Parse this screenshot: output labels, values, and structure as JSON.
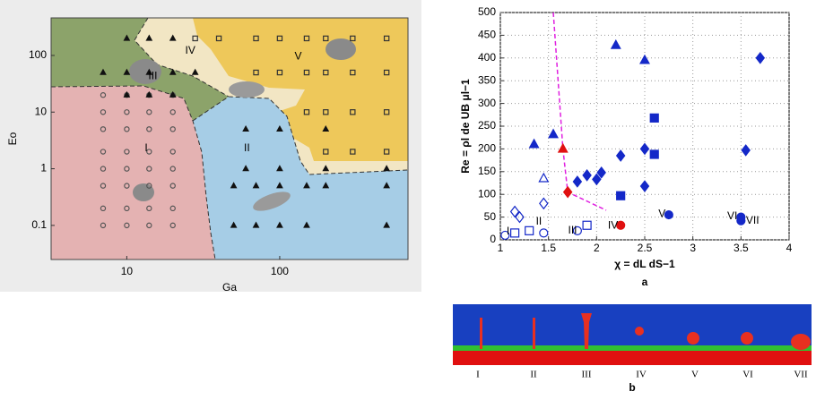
{
  "chart_data": [
    {
      "type": "scatter",
      "xlabel": "Ga",
      "ylabel": "Eo",
      "xscale": "log",
      "yscale": "log",
      "xlim": [
        3.2,
        690
      ],
      "ylim": [
        0.025,
        460
      ],
      "xticks": [
        10,
        100
      ],
      "yticks": [
        0.1,
        1,
        10,
        100
      ],
      "annotations": [
        {
          "text": "I",
          "x": 13.4,
          "y": 2.3
        },
        {
          "text": "II",
          "x": 61,
          "y": 2.3
        },
        {
          "text": "III",
          "x": 14.8,
          "y": 43
        },
        {
          "text": "IV",
          "x": 26,
          "y": 120
        },
        {
          "text": "V",
          "x": 132,
          "y": 96
        }
      ],
      "series": [
        {
          "marker": "circle",
          "filled": false,
          "color": "#555555",
          "x": [
            7,
            10,
            14,
            20,
            7,
            10,
            14,
            20,
            7,
            10,
            14,
            20,
            7,
            10,
            14,
            20,
            7,
            10,
            14,
            20,
            7,
            10,
            14,
            20,
            7,
            10,
            14,
            20,
            7,
            10,
            14,
            20
          ],
          "values": [
            0.1,
            0.1,
            0.1,
            0.1,
            0.2,
            0.2,
            0.2,
            0.2,
            0.5,
            0.5,
            0.5,
            0.5,
            1,
            1,
            1,
            1,
            2,
            2,
            2,
            2,
            5,
            5,
            5,
            5,
            10,
            10,
            10,
            10,
            20,
            20,
            20,
            20
          ]
        },
        {
          "marker": "triangle",
          "filled": true,
          "color": "#111111",
          "x": [
            50,
            70,
            100,
            150,
            500,
            50,
            70,
            100,
            150,
            200,
            500,
            60,
            100,
            200,
            500,
            60,
            100,
            200,
            10,
            14,
            20,
            7,
            10,
            14,
            20,
            28,
            10,
            14,
            20
          ],
          "values": [
            0.1,
            0.1,
            0.1,
            0.1,
            0.1,
            0.5,
            0.5,
            0.5,
            0.5,
            0.5,
            0.5,
            1,
            1,
            1,
            1,
            5,
            5,
            5,
            20,
            20,
            20,
            50,
            50,
            50,
            50,
            50,
            200,
            200,
            200
          ]
        },
        {
          "marker": "square",
          "filled": false,
          "color": "#333333",
          "x": [
            28,
            40,
            70,
            100,
            150,
            200,
            300,
            500,
            70,
            100,
            150,
            200,
            300,
            500,
            150,
            200,
            300,
            500,
            200,
            300,
            500
          ],
          "values": [
            200,
            200,
            200,
            200,
            200,
            200,
            200,
            200,
            50,
            50,
            50,
            50,
            50,
            50,
            10,
            10,
            10,
            10,
            2,
            2,
            2
          ]
        }
      ]
    },
    {
      "type": "scatter",
      "xlabel": "χ = dL dS−1",
      "ylabel": "Re = ρl de UB μl−1",
      "panel_label": "a",
      "xlim": [
        1,
        4
      ],
      "ylim": [
        0,
        500
      ],
      "xticks": [
        1,
        1.5,
        2,
        2.5,
        3,
        3.5,
        4
      ],
      "yticks": [
        0,
        50,
        100,
        150,
        200,
        250,
        300,
        350,
        400,
        450,
        500
      ],
      "grid": true,
      "annotations": [
        {
          "text": "I",
          "x": 1.08,
          "y": 18
        },
        {
          "text": "II",
          "x": 1.4,
          "y": 40
        },
        {
          "text": "III",
          "x": 1.75,
          "y": 20
        },
        {
          "text": "IV",
          "x": 2.17,
          "y": 31
        },
        {
          "text": "V",
          "x": 2.68,
          "y": 56
        },
        {
          "text": "VI",
          "x": 3.41,
          "y": 52
        },
        {
          "text": "VII",
          "x": 3.62,
          "y": 42
        }
      ],
      "series": [
        {
          "marker": "line",
          "dashed": true,
          "color": "#e020e0",
          "x": [
            1.55,
            1.6,
            1.65,
            1.7,
            1.95,
            2.1
          ],
          "values": [
            500,
            350,
            200,
            105,
            80,
            65
          ]
        },
        {
          "marker": "triangle",
          "filled": true,
          "color": "#1428c8",
          "x": [
            1.35,
            1.55,
            2.2,
            2.5
          ],
          "values": [
            210,
            232,
            428,
            395
          ]
        },
        {
          "marker": "diamond",
          "filled": true,
          "color": "#1428c8",
          "x": [
            1.8,
            1.9,
            2.0,
            2.05,
            2.25,
            2.5,
            2.5,
            3.55,
            3.7
          ],
          "values": [
            128,
            142,
            133,
            148,
            185,
            118,
            200,
            197,
            400
          ]
        },
        {
          "marker": "square",
          "filled": true,
          "color": "#1428c8",
          "x": [
            2.25,
            2.6,
            2.6
          ],
          "values": [
            97,
            188,
            268
          ]
        },
        {
          "marker": "circle",
          "filled": true,
          "color": "#1428c8",
          "x": [
            2.75,
            3.5,
            3.5
          ],
          "values": [
            55,
            50,
            42
          ]
        },
        {
          "marker": "circle",
          "filled": false,
          "color": "#1428c8",
          "x": [
            1.05,
            1.45,
            1.8
          ],
          "values": [
            10,
            15,
            20
          ]
        },
        {
          "marker": "square",
          "filled": false,
          "color": "#1428c8",
          "x": [
            1.15,
            1.3,
            1.9
          ],
          "values": [
            15,
            20,
            32
          ]
        },
        {
          "marker": "diamond",
          "filled": false,
          "color": "#1428c8",
          "x": [
            1.15,
            1.2,
            1.45
          ],
          "values": [
            62,
            50,
            80
          ]
        },
        {
          "marker": "triangle",
          "filled": false,
          "color": "#1428c8",
          "x": [
            1.45
          ],
          "values": [
            135
          ]
        },
        {
          "marker": "triangle",
          "filled": true,
          "color": "#e01010",
          "x": [
            1.65
          ],
          "values": [
            200
          ]
        },
        {
          "marker": "diamond",
          "filled": true,
          "color": "#e01010",
          "x": [
            1.7
          ],
          "values": [
            105
          ]
        },
        {
          "marker": "circle",
          "filled": true,
          "color": "#e01010",
          "x": [
            2.25
          ],
          "values": [
            32
          ]
        }
      ]
    }
  ],
  "figure_b": {
    "panel_label": "b",
    "labels": [
      "I",
      "II",
      "III",
      "IV",
      "V",
      "VI",
      "VII"
    ]
  }
}
